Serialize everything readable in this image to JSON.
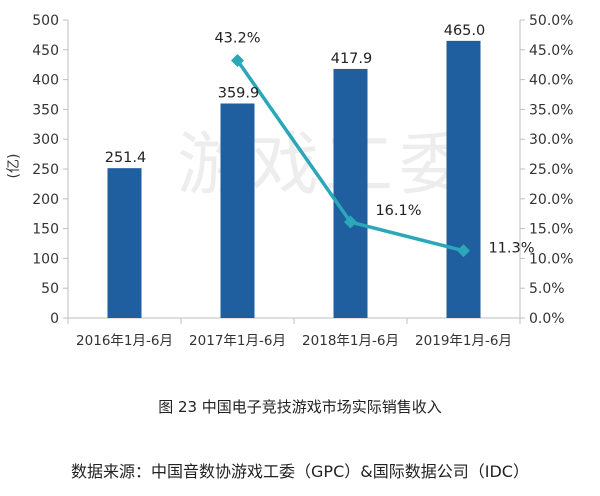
{
  "chart_data": {
    "type": "bar",
    "categories": [
      "2016年1月-6月",
      "2017年1月-6月",
      "2018年1月-6月",
      "2019年1月-6月"
    ],
    "series": [
      {
        "type": "bar",
        "values": [
          251.4,
          359.9,
          417.9,
          465.0
        ],
        "labels": [
          "251.4",
          "359.9",
          "417.9",
          "465.0"
        ]
      },
      {
        "type": "line",
        "axis": "right",
        "values": [
          null,
          43.2,
          16.1,
          11.3
        ],
        "labels": [
          "",
          "43.2%",
          "16.1%",
          "11.3%"
        ]
      }
    ],
    "ylabel": "(亿)",
    "ylim": [
      0,
      500
    ],
    "y_ticks": [
      "0",
      "50",
      "100",
      "150",
      "200",
      "250",
      "300",
      "350",
      "400",
      "450",
      "500"
    ],
    "y2lim": [
      0,
      50
    ],
    "y2_ticks": [
      "0.0%",
      "5.0%",
      "10.0%",
      "15.0%",
      "20.0%",
      "25.0%",
      "30.0%",
      "35.0%",
      "40.0%",
      "45.0%",
      "50.0%"
    ],
    "grid": false,
    "colors": {
      "bar": "#1f5e9f",
      "line": "#2aa7b8",
      "axis": "#bfbfbf"
    },
    "watermark": "游戏工委"
  },
  "figure_caption": "图 23  中国电子竞技游戏市场实际销售收入",
  "source_caption": "数据来源：中国音数协游戏工委（GPC）&国际数据公司（IDC）"
}
